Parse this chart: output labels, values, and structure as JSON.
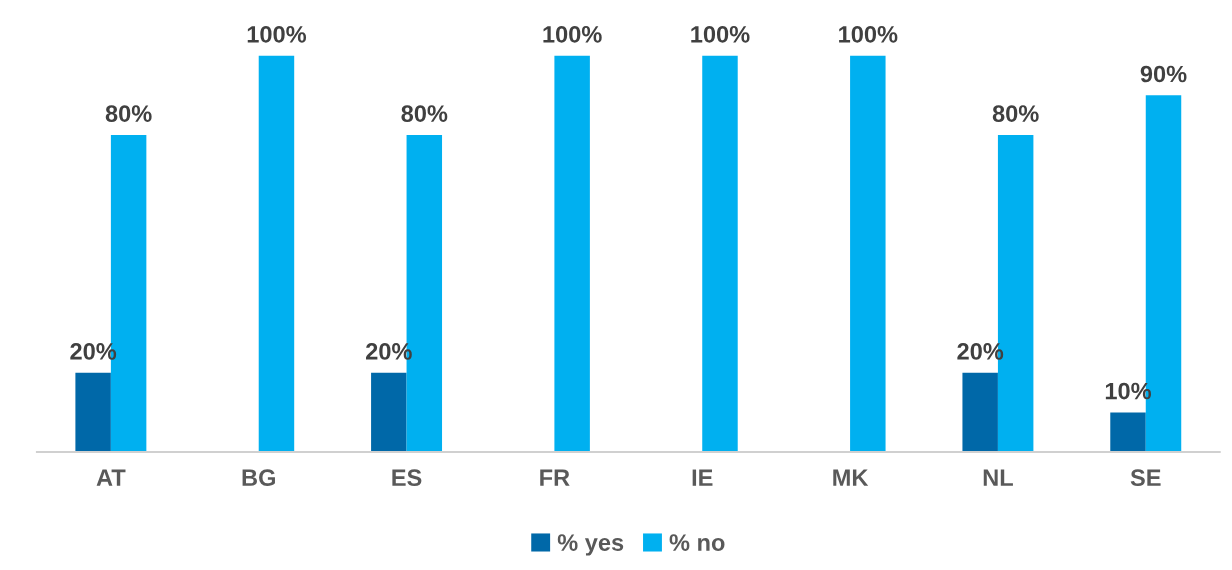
{
  "chart_data": {
    "type": "bar",
    "categories": [
      "AT",
      "BG",
      "ES",
      "FR",
      "IE",
      "MK",
      "NL",
      "SE"
    ],
    "series": [
      {
        "name": "% yes",
        "color": "#0068a8",
        "values": [
          20,
          null,
          20,
          null,
          null,
          null,
          20,
          10
        ],
        "value_labels": [
          "20%",
          null,
          "20%",
          null,
          null,
          null,
          "20%",
          "10%"
        ]
      },
      {
        "name": "% no",
        "color": "#00b0f0",
        "values": [
          80,
          100,
          80,
          100,
          100,
          100,
          80,
          90
        ],
        "value_labels": [
          "80%",
          "100%",
          "80%",
          "100%",
          "100%",
          "100%",
          "80%",
          "90%"
        ]
      }
    ],
    "legend": "bottom",
    "grid": false
  }
}
